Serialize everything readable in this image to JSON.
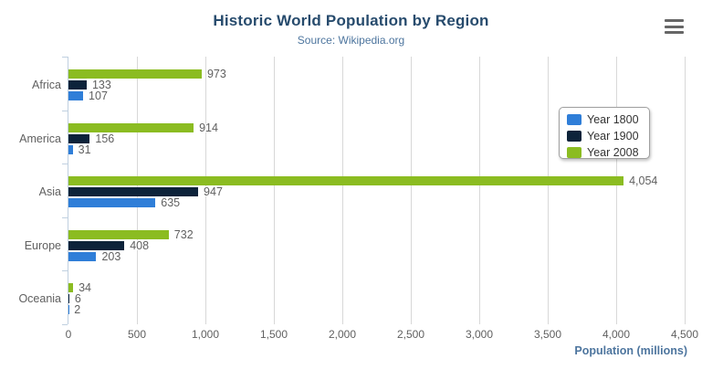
{
  "header": {
    "title": "Historic World Population by Region",
    "subtitle": "Source: Wikipedia.org"
  },
  "export_menu": {
    "icon": "hamburger-icon"
  },
  "legend": {
    "position": "right",
    "items": [
      {
        "label": "Year 1800",
        "color": "#2f7ed8"
      },
      {
        "label": "Year 1900",
        "color": "#0d233a"
      },
      {
        "label": "Year 2008",
        "color": "#8bbc21"
      }
    ]
  },
  "chart_data": {
    "type": "bar",
    "orientation": "horizontal",
    "title": "Historic World Population by Region",
    "subtitle": "Source: Wikipedia.org",
    "categories": [
      "Africa",
      "America",
      "Asia",
      "Europe",
      "Oceania"
    ],
    "series": [
      {
        "name": "Year 1800",
        "color": "#2f7ed8",
        "values": [
          107,
          31,
          635,
          203,
          2
        ],
        "labels": [
          "107",
          "31",
          "635",
          "203",
          "2"
        ]
      },
      {
        "name": "Year 1900",
        "color": "#0d233a",
        "values": [
          133,
          156,
          947,
          408,
          6
        ],
        "labels": [
          "133",
          "156",
          "947",
          "408",
          "6"
        ]
      },
      {
        "name": "Year 2008",
        "color": "#8bbc21",
        "values": [
          973,
          914,
          4054,
          732,
          34
        ],
        "labels": [
          "973",
          "914",
          "4,054",
          "732",
          "34"
        ]
      }
    ],
    "bar_order_top_to_bottom": [
      "Year 2008",
      "Year 1900",
      "Year 1800"
    ],
    "xlabel": "Population (millions)",
    "ylabel": "",
    "xlim": [
      0,
      4500
    ],
    "xticks": [
      0,
      500,
      1000,
      1500,
      2000,
      2500,
      3000,
      3500,
      4000,
      4500
    ],
    "xtick_labels": [
      "0",
      "500",
      "1,000",
      "1,500",
      "2,000",
      "2,500",
      "3,000",
      "3,500",
      "4,000",
      "4,500"
    ],
    "grid": true,
    "data_labels": true,
    "legend_position": "right"
  },
  "style_colors": {
    "grid_line": "#d8d8d8",
    "axis_line": "#c0d0e0",
    "label_text": "#606060",
    "title_text": "#274b6d",
    "axis_title_text": "#4d759e"
  }
}
